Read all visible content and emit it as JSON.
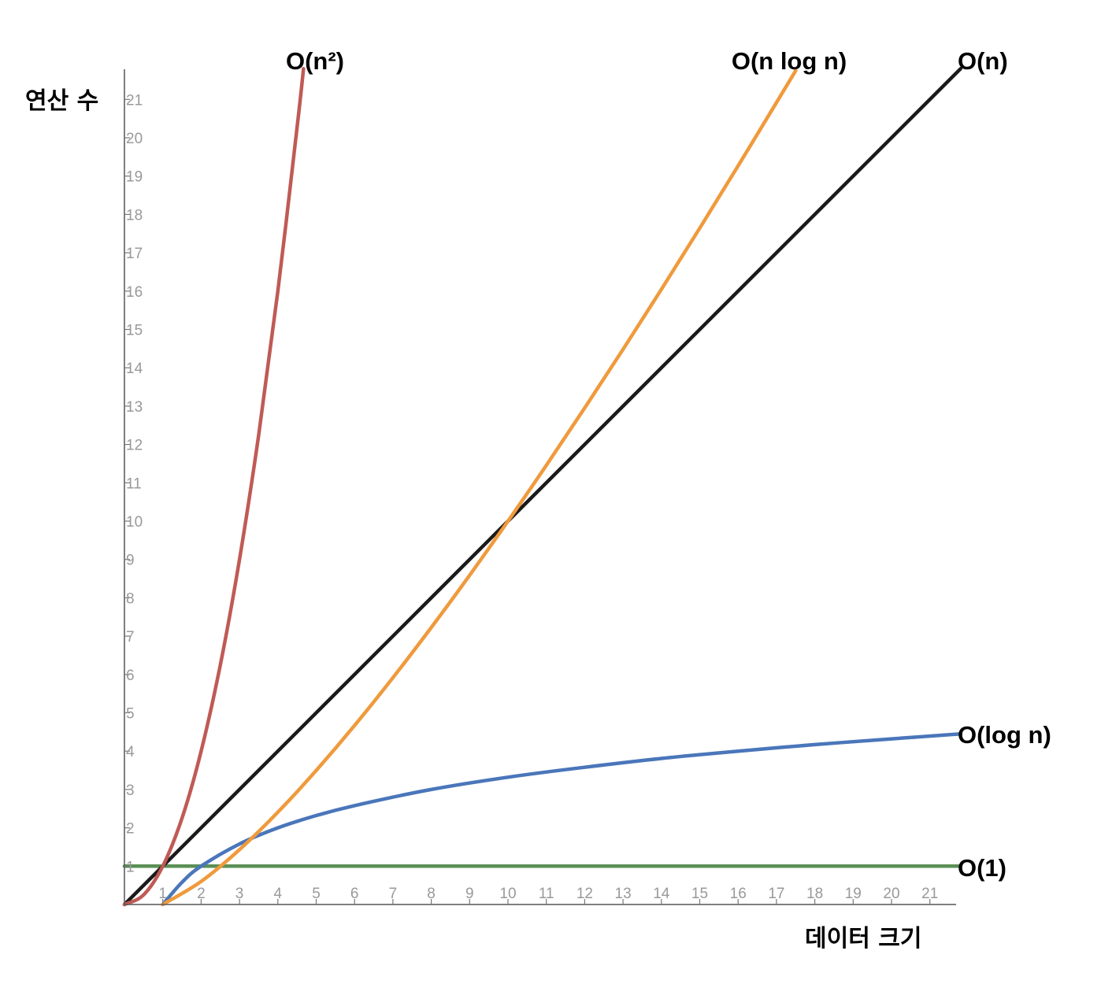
{
  "chart_data": {
    "type": "line",
    "xlabel": "데이터 크기",
    "ylabel": "연산 수",
    "xlim": [
      0,
      21.8
    ],
    "ylim": [
      0,
      21.8
    ],
    "x_ticks": [
      "1",
      "2",
      "3",
      "4",
      "5",
      "6",
      "7",
      "8",
      "9",
      "10",
      "11",
      "12",
      "13",
      "14",
      "15",
      "16",
      "17",
      "18",
      "19",
      "20",
      "21"
    ],
    "y_ticks": [
      "1",
      "2",
      "3",
      "4",
      "5",
      "6",
      "7",
      "8",
      "9",
      "10",
      "11",
      "12",
      "13",
      "14",
      "15",
      "16",
      "17",
      "18",
      "19",
      "20",
      "21"
    ],
    "grid": false,
    "legend": "none (labels at line ends)",
    "series": [
      {
        "name": "O(1)",
        "color": "#5a8f55",
        "x": [
          0,
          21.8
        ],
        "y": [
          1,
          1
        ]
      },
      {
        "name": "O(log n)",
        "color": "#4a76ba",
        "x": [
          1,
          1.5,
          2,
          3,
          4,
          5,
          6,
          8,
          10,
          12,
          14,
          16,
          18,
          20,
          21.8
        ],
        "y": [
          0,
          0.58,
          1.0,
          1.58,
          2.0,
          2.32,
          2.58,
          3.0,
          3.32,
          3.58,
          3.81,
          4.0,
          4.17,
          4.32,
          4.45
        ]
      },
      {
        "name": "O(n)",
        "color": "#1a1a1a",
        "x": [
          0,
          21.8
        ],
        "y": [
          0,
          21.8
        ]
      },
      {
        "name": "O(n log n)",
        "color": "#ef9a3c",
        "x": [
          1,
          2,
          3,
          4,
          5,
          6,
          7,
          8,
          9,
          10,
          11,
          12,
          13,
          14,
          15,
          16,
          17,
          17.5
        ],
        "y": [
          0,
          0.602,
          1.431,
          2.408,
          3.495,
          4.669,
          5.916,
          7.225,
          8.588,
          10.0,
          11.455,
          12.95,
          14.481,
          16.046,
          17.642,
          19.266,
          20.918,
          21.75
        ]
      },
      {
        "name": "O(n²)",
        "color": "#c05a55",
        "x": [
          0,
          0.5,
          1,
          1.5,
          2,
          2.5,
          3,
          3.5,
          4,
          4.5,
          4.67
        ],
        "y": [
          0,
          0.25,
          1,
          2.25,
          4,
          6.25,
          9,
          12.25,
          16,
          20.25,
          21.8
        ]
      }
    ]
  }
}
